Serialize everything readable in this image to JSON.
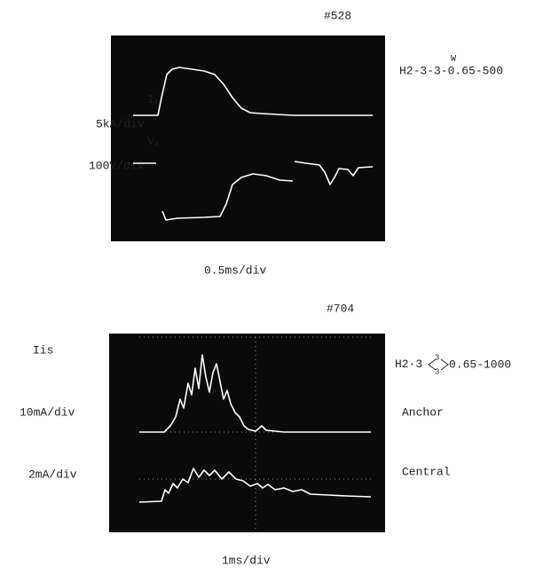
{
  "top_panel": {
    "shot": "#528",
    "channel_1": {
      "main": "I",
      "sub": "A",
      "scale": "5kA/div"
    },
    "channel_2": {
      "main": "V",
      "sub": "A",
      "scale": "100V/div"
    },
    "condition_mark": "W",
    "condition": "H2-3-3-0.65-500",
    "time_scale": "0.5ms/div"
  },
  "bottom_panel": {
    "shot": "#704",
    "signal": "Iis",
    "channel_1": {
      "scale": "10mA/div",
      "probe": "Anchor"
    },
    "channel_2": {
      "scale": "2mA/div",
      "probe": "Central"
    },
    "condition": {
      "prefix": "H2·3",
      "upper": "3",
      "lower": "3",
      "suffix": "0.65-1000"
    },
    "time_scale": "1ms/div"
  }
}
